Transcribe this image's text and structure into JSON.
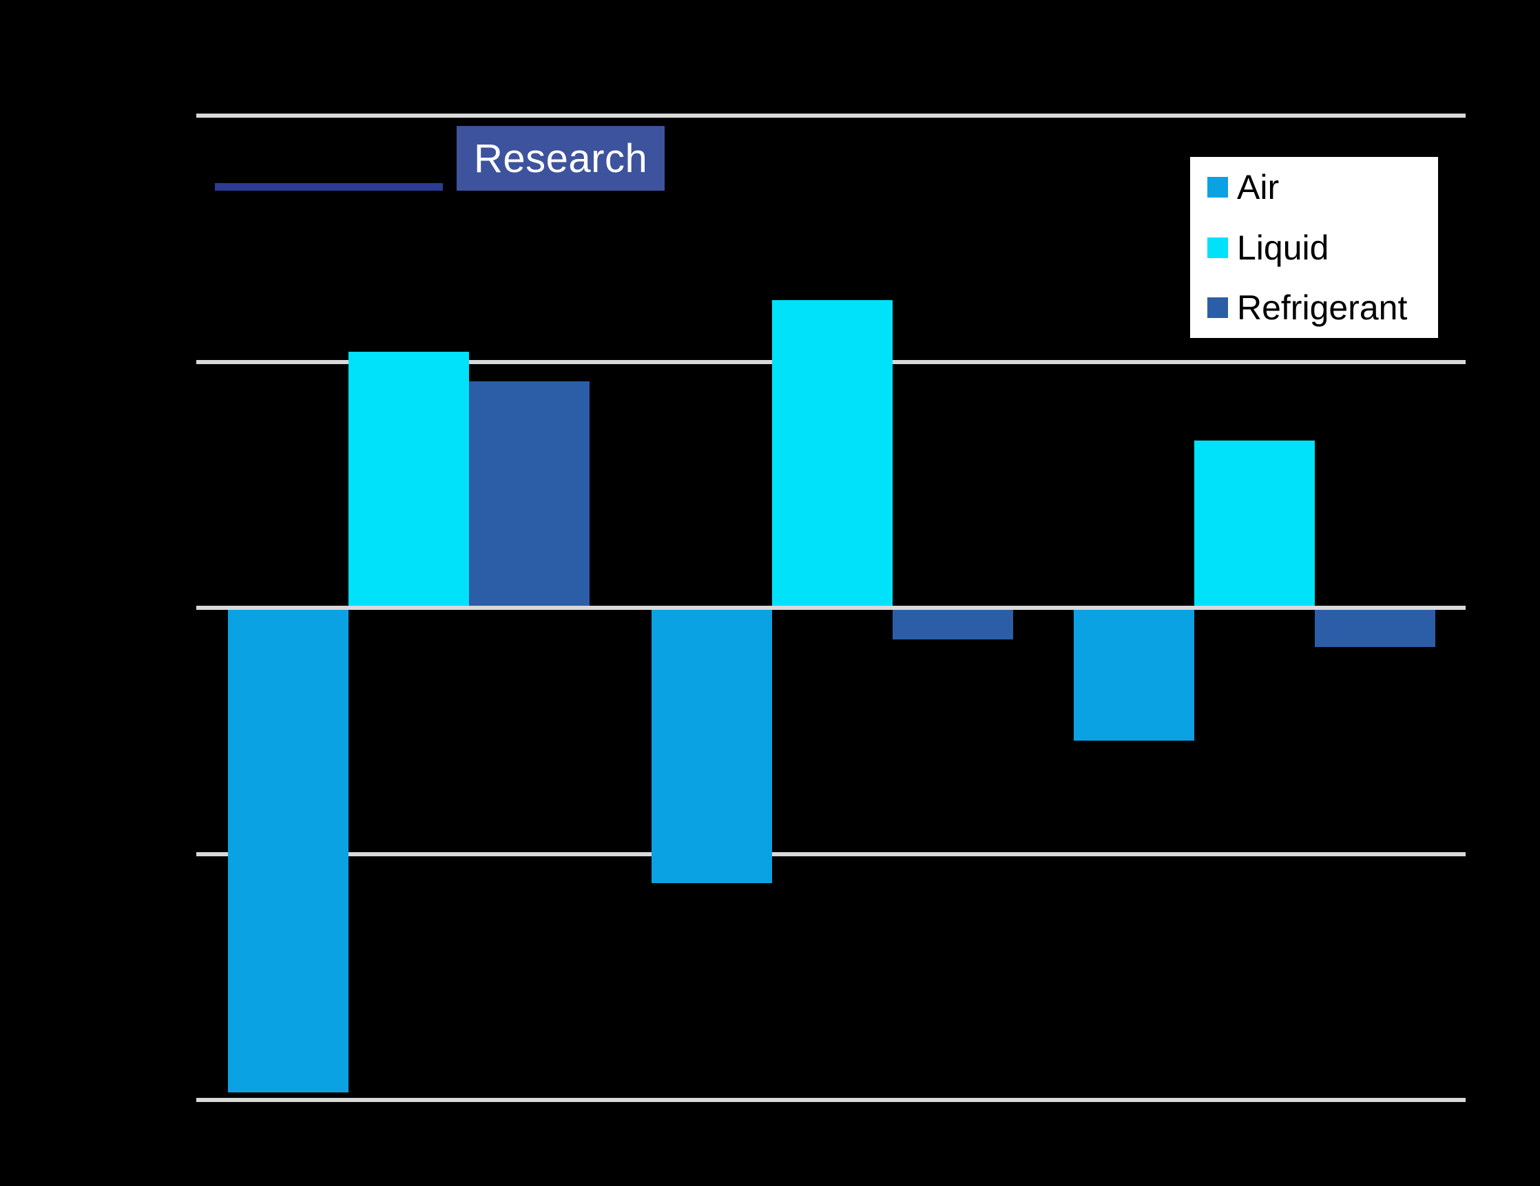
{
  "logo": {
    "research_label": "Research",
    "box_color": "#3E539D",
    "underline_color": "#2C3C94",
    "text_color": "#FFFFFF"
  },
  "legend": {
    "background": "#FFFFFF",
    "text_color": "#000000"
  },
  "colors": {
    "background": "#000000",
    "gridline": "#D9D9D9"
  },
  "chart_data": {
    "type": "bar",
    "categories": [
      "",
      "",
      ""
    ],
    "series": [
      {
        "name": "Air",
        "color": "#0AA2E2",
        "values": [
          -19.7,
          -11.2,
          -5.4
        ]
      },
      {
        "name": "Liquid",
        "color": "#00E1FA",
        "values": [
          10.4,
          12.5,
          6.8
        ]
      },
      {
        "name": "Refrigerant",
        "color": "#2B5EA6",
        "values": [
          9.2,
          -1.3,
          -1.6
        ]
      }
    ],
    "title": "",
    "xlabel": "",
    "ylabel": "",
    "ylim": [
      -20,
      20
    ],
    "gridline_values": [
      20,
      10,
      0,
      -10,
      -20
    ],
    "grid": true,
    "legend_position": "top-right",
    "axis_tick_labels_visible": false
  }
}
